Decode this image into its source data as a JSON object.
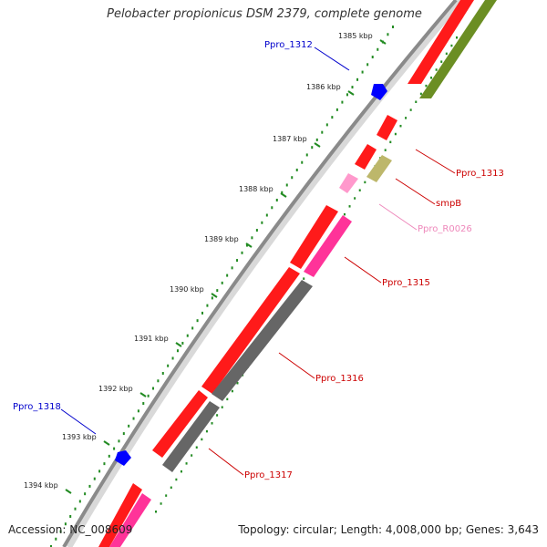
{
  "map": {
    "title": "Pelobacter propionicus DSM 2379, complete genome",
    "accession": "Accession: NC_008609",
    "summary": "Topology: circular; Length: 4,008,000 bp; Genes: 3,643"
  },
  "colors": {
    "tick_mark": "#228B22",
    "backbone": "#8a8a8a",
    "cds_forward": "#ff1a1a",
    "cds_reverse_pink": "#ff3399",
    "gene_olive": "#6b8e23",
    "gene_gray": "#666666",
    "rna_pink": "#ff99cc",
    "gene_tan": "#bdb76b",
    "label_blue": "#0000cc",
    "label_red": "#cc0000",
    "label_pink": "#ee88bb"
  },
  "ticks": [
    {
      "label": "1385 kbp"
    },
    {
      "label": "1386 kbp"
    },
    {
      "label": "1387 kbp"
    },
    {
      "label": "1388 kbp"
    },
    {
      "label": "1389 kbp"
    },
    {
      "label": "1390 kbp"
    },
    {
      "label": "1391 kbp"
    },
    {
      "label": "1392 kbp"
    },
    {
      "label": "1393 kbp"
    },
    {
      "label": "1394 kbp"
    }
  ],
  "gene_labels": [
    {
      "name": "Ppro_1312",
      "color": "#0000cc"
    },
    {
      "name": "Ppro_1313",
      "color": "#cc0000"
    },
    {
      "name": "smpB",
      "color": "#cc0000"
    },
    {
      "name": "Ppro_R0026",
      "color": "#ee88bb"
    },
    {
      "name": "Ppro_1315",
      "color": "#cc0000"
    },
    {
      "name": "Ppro_1316",
      "color": "#cc0000"
    },
    {
      "name": "Ppro_1317",
      "color": "#cc0000"
    },
    {
      "name": "Ppro_1318",
      "color": "#0000cc"
    }
  ]
}
